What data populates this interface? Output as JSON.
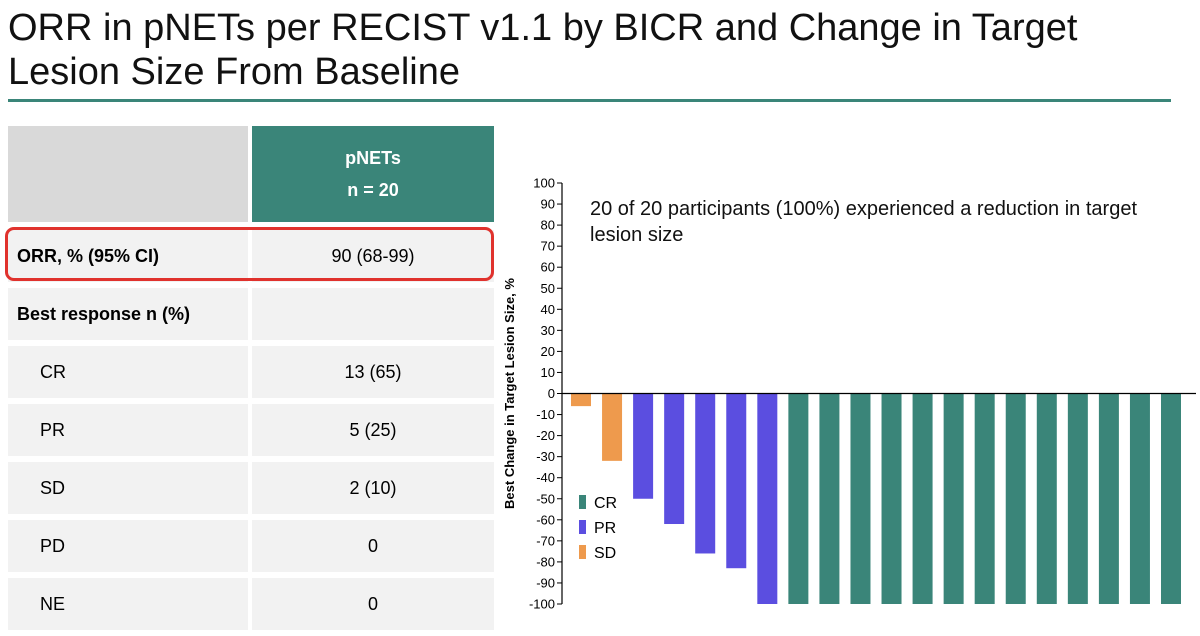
{
  "title": "ORR in pNETs per RECIST v1.1 by BICR and Change in Target Lesion Size From Baseline",
  "colors": {
    "accent": "#3a8579",
    "CR": "#3a8579",
    "PR": "#5b4ee0",
    "SD": "#ee9a4d",
    "highlight": "#e0322d"
  },
  "table": {
    "header": {
      "line1": "pNETs",
      "line2": "n = 20"
    },
    "rows": [
      {
        "label": "ORR, % (95% CI)",
        "value": "90 (68-99)"
      },
      {
        "label": "Best response n (%)",
        "value": ""
      },
      {
        "label": "CR",
        "value": "13 (65)"
      },
      {
        "label": "PR",
        "value": "5 (25)"
      },
      {
        "label": "SD",
        "value": "2 (10)"
      },
      {
        "label": "PD",
        "value": "0"
      },
      {
        "label": "NE",
        "value": "0"
      }
    ]
  },
  "chart_data": {
    "type": "bar",
    "title": "",
    "xlabel": "",
    "ylabel": "Best Change in Target Lesion Size, %",
    "ylim": [
      -100,
      100
    ],
    "yticks": [
      100,
      90,
      80,
      70,
      60,
      50,
      40,
      30,
      20,
      10,
      0,
      -10,
      -20,
      -30,
      -40,
      -50,
      -60,
      -70,
      -80,
      -90,
      -100
    ],
    "annotation": "20 of 20 participants (100%) experienced a reduction in target lesion size",
    "legend": {
      "position": "bottom-left",
      "entries": [
        "CR",
        "PR",
        "SD"
      ]
    },
    "bars": [
      {
        "response": "SD",
        "value": -6
      },
      {
        "response": "SD",
        "value": -32
      },
      {
        "response": "PR",
        "value": -50
      },
      {
        "response": "PR",
        "value": -62
      },
      {
        "response": "PR",
        "value": -76
      },
      {
        "response": "PR",
        "value": -83
      },
      {
        "response": "PR",
        "value": -100
      },
      {
        "response": "CR",
        "value": -100
      },
      {
        "response": "CR",
        "value": -100
      },
      {
        "response": "CR",
        "value": -100
      },
      {
        "response": "CR",
        "value": -100
      },
      {
        "response": "CR",
        "value": -100
      },
      {
        "response": "CR",
        "value": -100
      },
      {
        "response": "CR",
        "value": -100
      },
      {
        "response": "CR",
        "value": -100
      },
      {
        "response": "CR",
        "value": -100
      },
      {
        "response": "CR",
        "value": -100
      },
      {
        "response": "CR",
        "value": -100
      },
      {
        "response": "CR",
        "value": -100
      },
      {
        "response": "CR",
        "value": -100
      }
    ]
  }
}
